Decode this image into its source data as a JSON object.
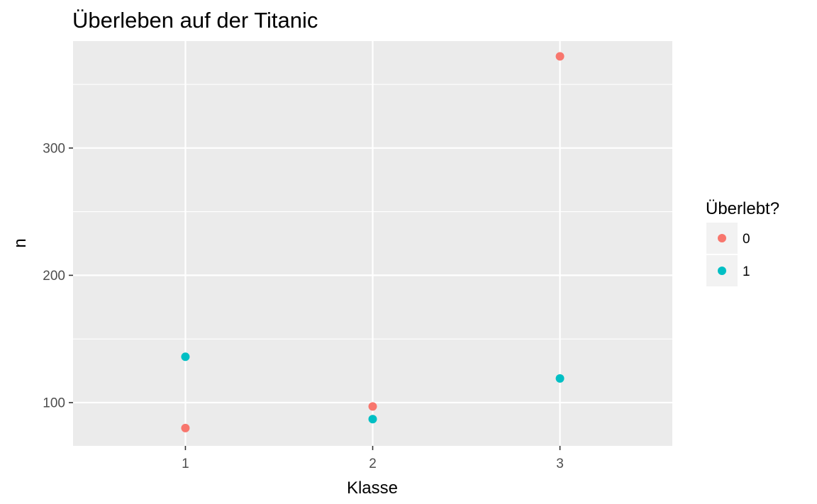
{
  "chart_data": {
    "type": "scatter",
    "title": "Überleben auf der Titanic",
    "xlabel": "Klasse",
    "ylabel": "n",
    "x_ticks": [
      "1",
      "2",
      "3"
    ],
    "y_ticks": [
      "100",
      "200",
      "300"
    ],
    "xlim": [
      0.4,
      3.6
    ],
    "ylim": [
      66,
      384
    ],
    "grid": true,
    "legend": {
      "title": "Überlebt?",
      "position": "right"
    },
    "series": [
      {
        "name": "0",
        "color": "#F8766D",
        "points": [
          {
            "x": 1,
            "y": 80
          },
          {
            "x": 2,
            "y": 97
          },
          {
            "x": 3,
            "y": 372
          }
        ]
      },
      {
        "name": "1",
        "color": "#00BFC4",
        "points": [
          {
            "x": 1,
            "y": 136
          },
          {
            "x": 2,
            "y": 87
          },
          {
            "x": 3,
            "y": 119
          }
        ]
      }
    ]
  }
}
